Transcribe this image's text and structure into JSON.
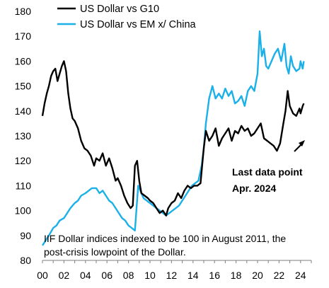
{
  "chart_data": {
    "type": "line",
    "title": "",
    "xlabel": "",
    "ylabel": "",
    "xlim": [
      2000,
      2025
    ],
    "ylim": [
      80,
      180
    ],
    "y_ticks": [
      80,
      90,
      100,
      110,
      120,
      130,
      140,
      150,
      160,
      170,
      180
    ],
    "x_ticks": [
      {
        "value": 2000,
        "label": "00"
      },
      {
        "value": 2002,
        "label": "02"
      },
      {
        "value": 2004,
        "label": "04"
      },
      {
        "value": 2006,
        "label": "06"
      },
      {
        "value": 2008,
        "label": "08"
      },
      {
        "value": 2010,
        "label": "10"
      },
      {
        "value": 2012,
        "label": "12"
      },
      {
        "value": 2014,
        "label": "14"
      },
      {
        "value": 2016,
        "label": "16"
      },
      {
        "value": 2018,
        "label": "18"
      },
      {
        "value": 2020,
        "label": "20"
      },
      {
        "value": 2022,
        "label": "22"
      },
      {
        "value": 2024,
        "label": "24"
      }
    ],
    "grid": false,
    "legend_position": "top-left",
    "series": [
      {
        "name": "US Dollar vs G10",
        "color": "#000000",
        "x": [
          2000.0,
          2000.2,
          2000.4,
          2000.6,
          2000.8,
          2001.0,
          2001.2,
          2001.4,
          2001.6,
          2001.8,
          2002.0,
          2002.2,
          2002.4,
          2002.6,
          2002.8,
          2003.0,
          2003.3,
          2003.6,
          2003.9,
          2004.2,
          2004.5,
          2004.8,
          2005.0,
          2005.3,
          2005.6,
          2005.9,
          2006.2,
          2006.5,
          2006.8,
          2007.0,
          2007.3,
          2007.6,
          2007.9,
          2008.2,
          2008.4,
          2008.6,
          2008.8,
          2009.0,
          2009.2,
          2009.5,
          2009.8,
          2010.0,
          2010.3,
          2010.6,
          2010.9,
          2011.2,
          2011.5,
          2011.7,
          2012.0,
          2012.3,
          2012.6,
          2012.9,
          2013.2,
          2013.5,
          2013.8,
          2014.1,
          2014.4,
          2014.7,
          2015.0,
          2015.2,
          2015.5,
          2015.8,
          2016.1,
          2016.4,
          2016.7,
          2017.0,
          2017.3,
          2017.6,
          2017.9,
          2018.2,
          2018.5,
          2018.8,
          2019.1,
          2019.4,
          2019.7,
          2020.0,
          2020.3,
          2020.6,
          2020.9,
          2021.2,
          2021.5,
          2021.8,
          2022.1,
          2022.4,
          2022.6,
          2022.8,
          2023.0,
          2023.3,
          2023.6,
          2023.9,
          2024.0,
          2024.2,
          2024.3
        ],
        "y": [
          138,
          143,
          147,
          150,
          154,
          156,
          157,
          152,
          155,
          158,
          160,
          156,
          147,
          141,
          137,
          136,
          133,
          128,
          125,
          124,
          122,
          118,
          121,
          120,
          123,
          118,
          121,
          117,
          112,
          113,
          110,
          106,
          103,
          101,
          102,
          118,
          120,
          112,
          107,
          106,
          105,
          104,
          103,
          101,
          99,
          100,
          98,
          101,
          103,
          104,
          107,
          105,
          108,
          110,
          109,
          110,
          110,
          111,
          125,
          132,
          128,
          130,
          133,
          126,
          129,
          131,
          133,
          128,
          132,
          131,
          134,
          132,
          133,
          130,
          131,
          133,
          135,
          129,
          128,
          127,
          126,
          124,
          127,
          135,
          140,
          148,
          142,
          139,
          138,
          141,
          139,
          142,
          143
        ]
      },
      {
        "name": "US Dollar vs EM x/ China",
        "color": "#1AB0E8",
        "x": [
          2000.0,
          2000.3,
          2000.6,
          2001.0,
          2001.3,
          2001.6,
          2002.0,
          2002.3,
          2002.6,
          2003.0,
          2003.3,
          2003.6,
          2004.0,
          2004.3,
          2004.6,
          2005.0,
          2005.3,
          2005.6,
          2005.9,
          2006.2,
          2006.5,
          2006.8,
          2007.1,
          2007.4,
          2007.7,
          2008.0,
          2008.3,
          2008.6,
          2008.9,
          2009.1,
          2009.4,
          2009.7,
          2010.0,
          2010.3,
          2010.6,
          2010.9,
          2011.2,
          2011.5,
          2011.8,
          2012.1,
          2012.4,
          2012.7,
          2013.0,
          2013.3,
          2013.6,
          2013.9,
          2014.2,
          2014.5,
          2014.8,
          2015.0,
          2015.2,
          2015.5,
          2015.8,
          2016.1,
          2016.4,
          2016.7,
          2017.0,
          2017.3,
          2017.6,
          2017.9,
          2018.2,
          2018.5,
          2018.8,
          2019.1,
          2019.4,
          2019.7,
          2020.0,
          2020.2,
          2020.4,
          2020.6,
          2020.8,
          2021.0,
          2021.3,
          2021.6,
          2021.9,
          2022.2,
          2022.5,
          2022.7,
          2022.9,
          2023.1,
          2023.3,
          2023.6,
          2023.9,
          2024.0,
          2024.2,
          2024.3
        ],
        "y": [
          86,
          88,
          90,
          93,
          94,
          96,
          97,
          99,
          101,
          103,
          104,
          106,
          107,
          108,
          109,
          109,
          107,
          108,
          106,
          104,
          103,
          101,
          99,
          97,
          96,
          94,
          93,
          92,
          110,
          108,
          105,
          104,
          103,
          102,
          101,
          100,
          99,
          98,
          99,
          100,
          101,
          102,
          104,
          106,
          108,
          110,
          111,
          112,
          118,
          125,
          135,
          145,
          150,
          145,
          147,
          145,
          149,
          146,
          148,
          143,
          144,
          146,
          142,
          148,
          150,
          148,
          155,
          172,
          162,
          165,
          158,
          157,
          160,
          163,
          165,
          160,
          167,
          158,
          155,
          162,
          158,
          156,
          157,
          160,
          157,
          160
        ]
      }
    ],
    "annotations": {
      "last_point_line1": "Last data point",
      "last_point_line2": "Apr. 2024",
      "note_line1": "IIF Dollar indices indexed to be 100 in August 2011, the",
      "note_line2": "post-crisis lowpoint of the Dollar."
    }
  }
}
